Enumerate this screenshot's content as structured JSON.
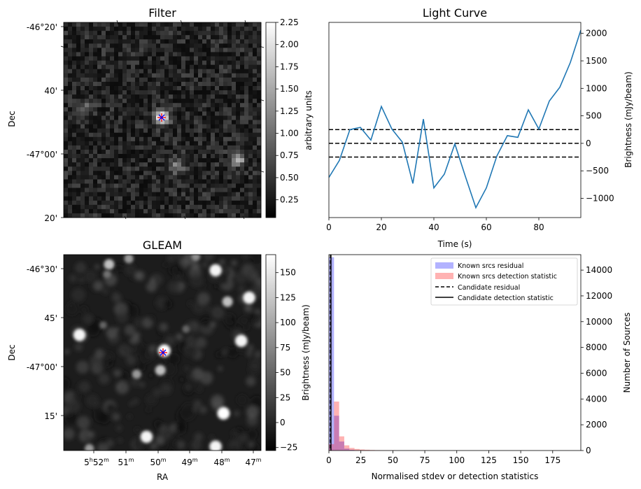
{
  "chart_data": [
    {
      "type": "heatmap",
      "title": "Filter",
      "ylabel": "Dec",
      "yticks": [
        "-46°20'",
        "40'",
        "-47°00'",
        "20'"
      ],
      "colorbar": {
        "label": "arbitrary units",
        "ticks": [
          "2.25",
          "2.00",
          "1.75",
          "1.50",
          "1.25",
          "1.00",
          "0.75",
          "0.50",
          "0.25"
        ],
        "range": [
          0.05,
          2.25
        ],
        "colormap": "gray"
      },
      "markers": {
        "plus_color": "#ff0000",
        "x_color": "#0000ff"
      }
    },
    {
      "type": "line",
      "title": "Light Curve",
      "xlabel": "Time (s)",
      "ylabel": "Brightness (mJy/beam)",
      "xlim": [
        0,
        96
      ],
      "ylim": [
        -1350,
        2200
      ],
      "xticks": [
        "0",
        "20",
        "40",
        "60",
        "80"
      ],
      "yticks": [
        "2000",
        "1500",
        "1000",
        "500",
        "0",
        "−500",
        "−1000"
      ],
      "series": [
        {
          "color": "#1f77b4",
          "x": [
            0,
            4,
            8,
            12,
            16,
            20,
            24,
            28,
            32,
            36,
            40,
            44,
            48,
            52,
            56,
            60,
            64,
            68,
            72,
            76,
            80,
            84,
            88,
            92,
            96
          ],
          "y": [
            -620,
            -310,
            250,
            290,
            60,
            670,
            260,
            20,
            -730,
            440,
            -810,
            -560,
            -10,
            -600,
            -1170,
            -810,
            -230,
            140,
            110,
            610,
            260,
            770,
            1020,
            1470,
            2060
          ]
        }
      ],
      "hlines": [
        {
          "y": 250,
          "style": "dashed",
          "color": "#000000"
        },
        {
          "y": 0,
          "style": "dashed",
          "color": "#000000"
        },
        {
          "y": -250,
          "style": "dashed",
          "color": "#000000"
        }
      ]
    },
    {
      "type": "heatmap",
      "title": "GLEAM",
      "xlabel": "RA",
      "ylabel": "Dec",
      "yticks": [
        "-46°30'",
        "45'",
        "-47°00'",
        "15'"
      ],
      "xticks": [
        {
          "base": "5",
          "h": "h",
          "main": "52",
          "m": "m"
        },
        {
          "base": "51",
          "m": "m"
        },
        {
          "base": "50",
          "m": "m"
        },
        {
          "base": "49",
          "m": "m"
        },
        {
          "base": "48",
          "m": "m"
        },
        {
          "base": "47",
          "m": "m"
        }
      ],
      "colorbar": {
        "label": "Brightness (mJy/beam)",
        "ticks": [
          "150",
          "125",
          "100",
          "75",
          "50",
          "25",
          "0",
          "−25"
        ],
        "range": [
          -28,
          168
        ],
        "colormap": "gray"
      },
      "sources": [
        {
          "ra": 0.23,
          "dec": 0.05,
          "flux": 120
        },
        {
          "ra": 0.33,
          "dec": 0.02,
          "flux": 90
        },
        {
          "ra": 0.22,
          "dec": 0.1,
          "flux": 60
        },
        {
          "ra": 0.77,
          "dec": 0.08,
          "flux": 160
        },
        {
          "ra": 0.67,
          "dec": 0.01,
          "flux": 80
        },
        {
          "ra": 0.83,
          "dec": 0.24,
          "flux": 120
        },
        {
          "ra": 0.94,
          "dec": 0.22,
          "flux": 160
        },
        {
          "ra": 0.08,
          "dec": 0.41,
          "flux": 160
        },
        {
          "ra": 0.9,
          "dec": 0.44,
          "flux": 160
        },
        {
          "ra": 0.51,
          "dec": 0.49,
          "flux": 168
        },
        {
          "ra": 0.49,
          "dec": 0.59,
          "flux": 120
        },
        {
          "ra": 0.37,
          "dec": 0.61,
          "flux": 90
        },
        {
          "ra": 0.81,
          "dec": 0.81,
          "flux": 168
        },
        {
          "ra": 0.42,
          "dec": 0.93,
          "flux": 160
        },
        {
          "ra": 0.77,
          "dec": 0.98,
          "flux": 160
        },
        {
          "ra": 0.13,
          "dec": 0.99,
          "flux": 90
        },
        {
          "ra": 0.2,
          "dec": 0.36,
          "flux": 50
        },
        {
          "ra": 0.62,
          "dec": 0.38,
          "flux": 50
        }
      ],
      "markers": {
        "plus_color": "#ff0000",
        "x_color": "#0000ff"
      }
    },
    {
      "type": "bar",
      "subtype": "histogram",
      "xlabel": "Normalised stdev or detection statistics",
      "ylabel": "Number of Sources",
      "xlim": [
        0,
        197
      ],
      "ylim": [
        0,
        15200
      ],
      "xticks": [
        "0",
        "25",
        "50",
        "75",
        "100",
        "125",
        "150",
        "175"
      ],
      "yticks": [
        "0",
        "2000",
        "4000",
        "6000",
        "8000",
        "10000",
        "12000",
        "14000"
      ],
      "bin_width": 4,
      "series": [
        {
          "name": "Known srcs residual",
          "color": "#0000ff",
          "alpha": 0.3,
          "bins_start": [
            0,
            4,
            8,
            12,
            16,
            20,
            24
          ],
          "values": [
            15000,
            2700,
            700,
            150,
            60,
            20,
            10
          ]
        },
        {
          "name": "Known srcs detection statistic",
          "color": "#ff0000",
          "alpha": 0.3,
          "bins_start": [
            0,
            4,
            8,
            12,
            16,
            20,
            24,
            28,
            32,
            36,
            40,
            44,
            48,
            60,
            72,
            100,
            128,
            160,
            184,
            188
          ],
          "values": [
            500,
            3800,
            1100,
            400,
            200,
            120,
            80,
            60,
            40,
            30,
            20,
            20,
            15,
            10,
            8,
            6,
            5,
            5,
            8,
            4
          ]
        }
      ],
      "vlines": [
        {
          "name": "Candidate residual",
          "x": 1.2,
          "style": "dashed",
          "color": "#000000"
        },
        {
          "name": "Candidate detection statistic",
          "x": 1.6,
          "style": "solid",
          "color": "#000000"
        }
      ]
    }
  ]
}
